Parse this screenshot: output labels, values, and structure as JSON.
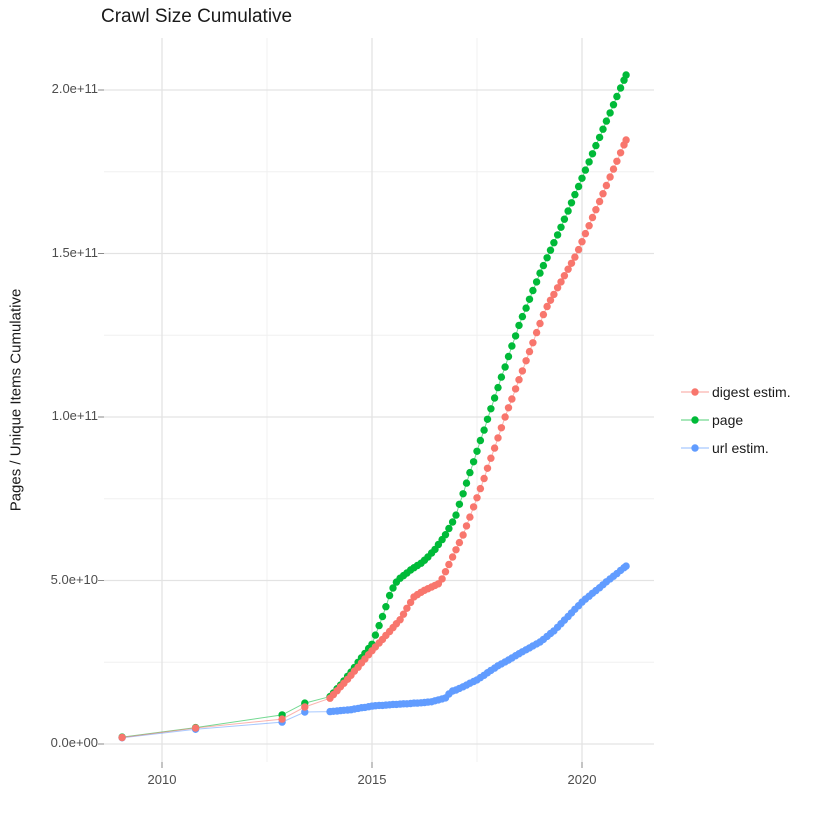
{
  "title": "Crawl Size Cumulative",
  "y_axis": {
    "label": "Pages / Unique Items Cumulative",
    "ticks": [
      "0.0e+00",
      "5.0e+10",
      "1.0e+11",
      "1.5e+11",
      "2.0e+11"
    ],
    "tick_values": [
      0,
      50000000000.0,
      100000000000.0,
      150000000000.0,
      200000000000.0
    ],
    "minor_tick_values": [
      25000000000.0,
      75000000000.0,
      125000000000.0,
      175000000000.0
    ]
  },
  "x_axis": {
    "label": "",
    "ticks": [
      "2010",
      "2015",
      "2020"
    ],
    "tick_values": [
      2010,
      2015,
      2020
    ],
    "minor_tick_values": [
      2012.5,
      2017.5
    ]
  },
  "legend": {
    "position": "right",
    "items": [
      {
        "label": "digest estim.",
        "color": "#F8766D"
      },
      {
        "label": "page",
        "color": "#00BA38"
      },
      {
        "label": "url estim.",
        "color": "#619CFF"
      }
    ]
  },
  "style": {
    "background": "#FFFFFF",
    "grid_major_color": "#E3E3E3",
    "grid_minor_color": "#F0F0F0",
    "tick_color": "#8A8A8A",
    "text_color": "#4d4d4d",
    "title_color": "#1a1a1a"
  },
  "chart_data": {
    "type": "scatter",
    "title": "Crawl Size Cumulative",
    "xlabel": "",
    "ylabel": "Pages / Unique Items Cumulative",
    "xlim": [
      2008.5,
      2021.8
    ],
    "ylim": [
      0,
      215000000000.0
    ],
    "grid": true,
    "legend_position": "right",
    "marker": "point-with-line",
    "y_unit": "items cumulative, values in units of 1e10",
    "y_scale": 10000000000.0,
    "x": [
      2009.05,
      2010.8,
      2012.86,
      2013.4,
      2014,
      2014.08,
      2014.17,
      2014.25,
      2014.33,
      2014.42,
      2014.5,
      2014.58,
      2014.67,
      2014.75,
      2014.83,
      2014.92,
      2015,
      2015.08,
      2015.17,
      2015.25,
      2015.33,
      2015.42,
      2015.5,
      2015.58,
      2015.67,
      2015.75,
      2015.83,
      2015.92,
      2016,
      2016.08,
      2016.17,
      2016.25,
      2016.33,
      2016.42,
      2016.5,
      2016.58,
      2016.67,
      2016.75,
      2016.83,
      2016.92,
      2017,
      2017.08,
      2017.17,
      2017.25,
      2017.33,
      2017.42,
      2017.5,
      2017.58,
      2017.67,
      2017.75,
      2017.83,
      2017.92,
      2018,
      2018.08,
      2018.17,
      2018.25,
      2018.33,
      2018.42,
      2018.5,
      2018.58,
      2018.67,
      2018.75,
      2018.83,
      2018.92,
      2019,
      2019.08,
      2019.17,
      2019.25,
      2019.33,
      2019.42,
      2019.5,
      2019.58,
      2019.67,
      2019.75,
      2019.83,
      2019.92,
      2020,
      2020.08,
      2020.17,
      2020.25,
      2020.33,
      2020.42,
      2020.5,
      2020.58,
      2020.67,
      2020.75,
      2020.83,
      2020.92,
      2021,
      2021.05
    ],
    "series": [
      {
        "name": "digest estim.",
        "color": "#F8766D",
        "y": [
          0.2,
          0.49,
          0.76,
          1.13,
          1.4,
          1.51,
          1.63,
          1.75,
          1.86,
          1.98,
          2.1,
          2.23,
          2.35,
          2.48,
          2.6,
          2.73,
          2.85,
          2.97,
          3.09,
          3.2,
          3.32,
          3.44,
          3.56,
          3.68,
          3.8,
          3.97,
          4.15,
          4.33,
          4.5,
          4.57,
          4.64,
          4.7,
          4.75,
          4.8,
          4.85,
          4.9,
          5.05,
          5.27,
          5.49,
          5.72,
          5.94,
          6.16,
          6.39,
          6.67,
          6.94,
          7.25,
          7.53,
          7.81,
          8.12,
          8.43,
          8.74,
          9.05,
          9.36,
          9.67,
          10,
          10.28,
          10.55,
          10.86,
          11.14,
          11.41,
          11.72,
          12,
          12.27,
          12.58,
          12.86,
          13.13,
          13.38,
          13.57,
          13.75,
          13.95,
          14.13,
          14.32,
          14.52,
          14.7,
          14.89,
          15.12,
          15.36,
          15.61,
          15.85,
          16.1,
          16.34,
          16.59,
          16.83,
          17.08,
          17.34,
          17.58,
          17.82,
          18.08,
          18.32,
          18.47
        ]
      },
      {
        "name": "page",
        "color": "#00BA38",
        "y": [
          0.21,
          0.5,
          0.89,
          1.25,
          1.45,
          1.56,
          1.69,
          1.8,
          1.93,
          2.07,
          2.2,
          2.34,
          2.5,
          2.64,
          2.77,
          2.92,
          3.05,
          3.33,
          3.62,
          3.9,
          4.2,
          4.54,
          4.77,
          4.95,
          5.07,
          5.15,
          5.23,
          5.32,
          5.39,
          5.46,
          5.53,
          5.62,
          5.72,
          5.84,
          5.95,
          6.1,
          6.25,
          6.4,
          6.59,
          6.79,
          7,
          7.33,
          7.65,
          7.98,
          8.3,
          8.63,
          8.95,
          9.28,
          9.6,
          9.93,
          10.25,
          10.58,
          10.9,
          11.22,
          11.53,
          11.85,
          12.17,
          12.48,
          12.8,
          13.07,
          13.33,
          13.6,
          13.87,
          14.13,
          14.4,
          14.63,
          14.87,
          15.1,
          15.33,
          15.57,
          15.8,
          16.05,
          16.3,
          16.55,
          16.8,
          17.05,
          17.3,
          17.55,
          17.8,
          18.05,
          18.3,
          18.55,
          18.8,
          19.05,
          19.3,
          19.55,
          19.8,
          20.06,
          20.3,
          20.46
        ]
      },
      {
        "name": "url estim.",
        "color": "#619CFF",
        "y": [
          0.19,
          0.45,
          0.67,
          0.98,
          0.99,
          1,
          1.01,
          1.02,
          1.03,
          1.04,
          1.05,
          1.07,
          1.09,
          1.11,
          1.12,
          1.14,
          1.16,
          1.17,
          1.18,
          1.18,
          1.19,
          1.2,
          1.21,
          1.21,
          1.22,
          1.23,
          1.23,
          1.24,
          1.25,
          1.25,
          1.26,
          1.27,
          1.28,
          1.29,
          1.32,
          1.35,
          1.38,
          1.41,
          1.53,
          1.62,
          1.65,
          1.7,
          1.75,
          1.8,
          1.86,
          1.91,
          1.96,
          2.03,
          2.1,
          2.18,
          2.25,
          2.32,
          2.39,
          2.45,
          2.51,
          2.57,
          2.63,
          2.7,
          2.76,
          2.82,
          2.88,
          2.94,
          3,
          3.06,
          3.12,
          3.2,
          3.29,
          3.38,
          3.46,
          3.57,
          3.68,
          3.79,
          3.9,
          4.01,
          4.12,
          4.23,
          4.34,
          4.43,
          4.52,
          4.61,
          4.69,
          4.78,
          4.87,
          4.96,
          5.05,
          5.13,
          5.21,
          5.31,
          5.39,
          5.44
        ]
      }
    ]
  }
}
